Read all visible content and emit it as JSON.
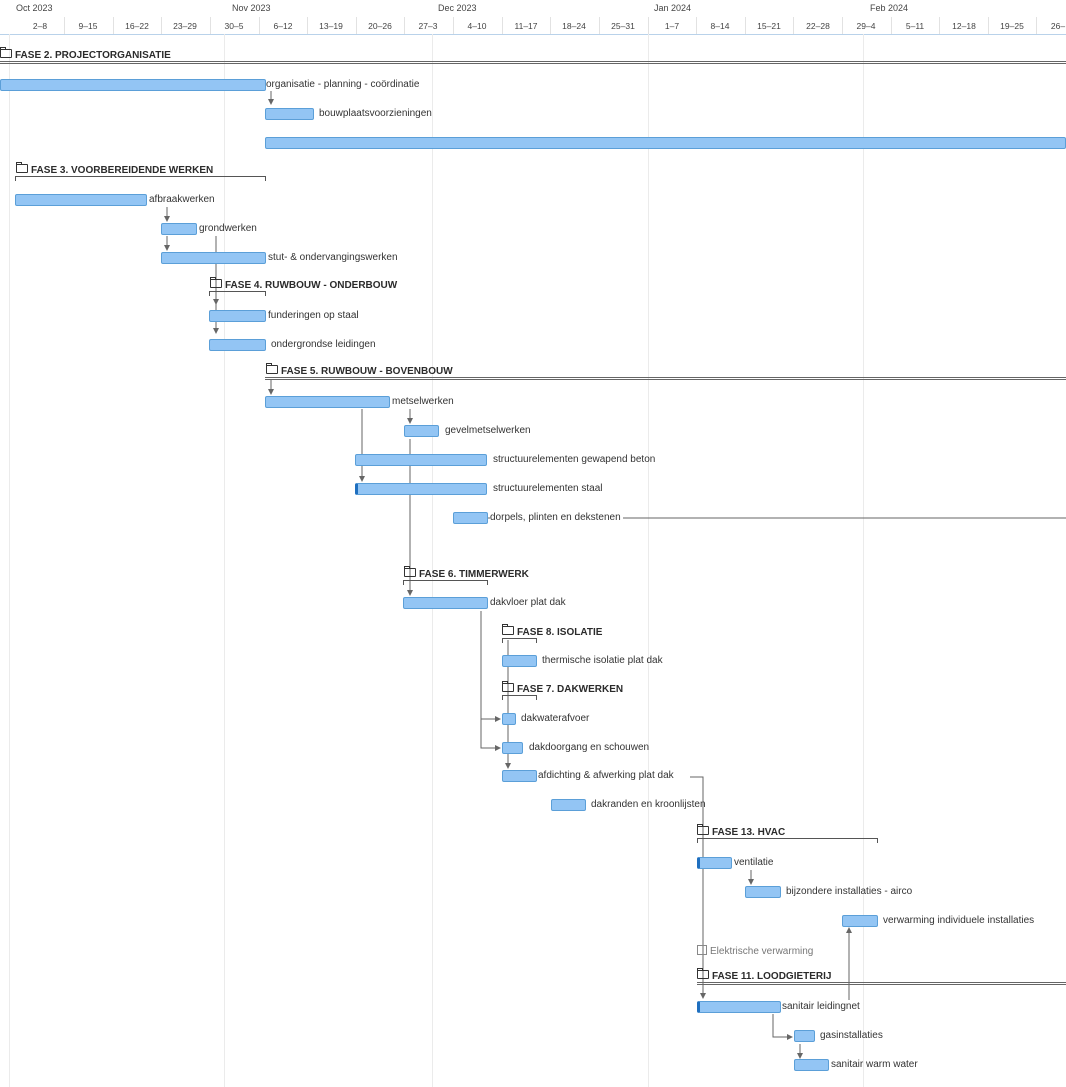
{
  "months": [
    "Oct 2023",
    "Nov 2023",
    "Dec 2023",
    "Jan 2024",
    "Feb 2024"
  ],
  "weeks": [
    "2–8",
    "9–15",
    "16–22",
    "23–29",
    "30–5",
    "6–12",
    "13–19",
    "20–26",
    "27–3",
    "4–10",
    "11–17",
    "18–24",
    "25–31",
    "1–7",
    "8–14",
    "15–21",
    "22–28",
    "29–4",
    "5–11",
    "12–18",
    "19–25",
    "26–"
  ],
  "phases": {
    "p2": "FASE 2. PROJECTORGANISATIE",
    "p3": "FASE 3. VOORBEREIDENDE WERKEN",
    "p4": "FASE 4. RUWBOUW - ONDERBOUW",
    "p5": "FASE 5. RUWBOUW - BOVENBOUW",
    "p6": "FASE 6. TIMMERWERK",
    "p8": "FASE 8. ISOLATIE",
    "p7": "FASE 7. DAKWERKEN",
    "p13": "FASE 13. HVAC",
    "p11": "FASE 11. LOODGIETERIJ"
  },
  "tasks": {
    "t1": "organisatie - planning - coördinatie",
    "t2": "bouwplaatsvoorzieningen",
    "t3": "afbraakwerken",
    "t4": "grondwerken",
    "t5": "stut- & ondervangingswerken",
    "t6": "funderingen op staal",
    "t7": "ondergrondse leidingen",
    "t8": "metselwerken",
    "t9": "gevelmetselwerken",
    "t10": "structuurelementen gewapend beton",
    "t11": "structuurelementen staal",
    "t12": "dorpels, plinten en dekstenen",
    "t13": "dakvloer plat dak",
    "t14": "thermische isolatie plat dak",
    "t15": "dakwaterafvoer",
    "t16": "dakdoorgang en schouwen",
    "t17": "afdichting & afwerking plat dak",
    "t18": "dakranden en kroonlijsten",
    "t19": "ventilatie",
    "t20": "bijzondere installaties - airco",
    "t21": "verwarming individuele installaties",
    "t22": "Elektrische verwarming",
    "t23": "sanitair leidingnet",
    "t24": "gasinstallaties",
    "t25": "sanitair warm water"
  },
  "colors": {
    "bar": "#93c5f4",
    "bar_border": "#5b9fd8",
    "link": "#666666",
    "grid": "#ebebeb"
  }
}
